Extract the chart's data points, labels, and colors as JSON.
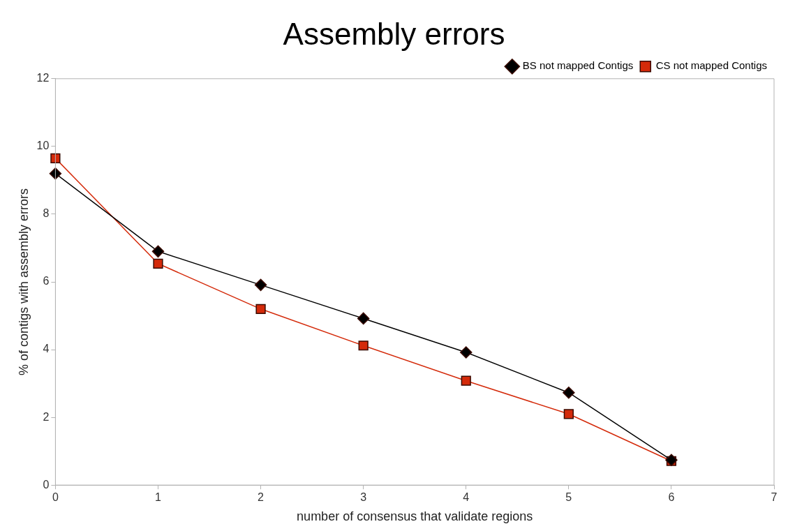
{
  "chart_data": {
    "type": "line",
    "title": "Assembly errors",
    "xlabel": "number of consensus that validate regions",
    "ylabel": "% of contigs with assembly errors",
    "x": [
      0,
      1,
      2,
      3,
      4,
      5,
      6
    ],
    "series": [
      {
        "name": "CS not mapped Contigs",
        "color": "#d42a0a",
        "marker": "square",
        "values": [
          9.65,
          6.54,
          5.2,
          4.12,
          3.08,
          2.1,
          0.71
        ]
      },
      {
        "name": "BS not mapped Contigs",
        "color": "#000000",
        "marker": "diamond",
        "values": [
          9.2,
          6.9,
          5.91,
          4.92,
          3.92,
          2.73,
          0.74
        ]
      }
    ],
    "xlim": [
      0,
      7
    ],
    "xticks": [
      0,
      1,
      2,
      3,
      4,
      5,
      6,
      7
    ],
    "ylim": [
      0,
      12
    ],
    "yticks": [
      0,
      2,
      4,
      6,
      8,
      10,
      12
    ],
    "grid": false,
    "legend": "top right",
    "line_style": "solid"
  }
}
